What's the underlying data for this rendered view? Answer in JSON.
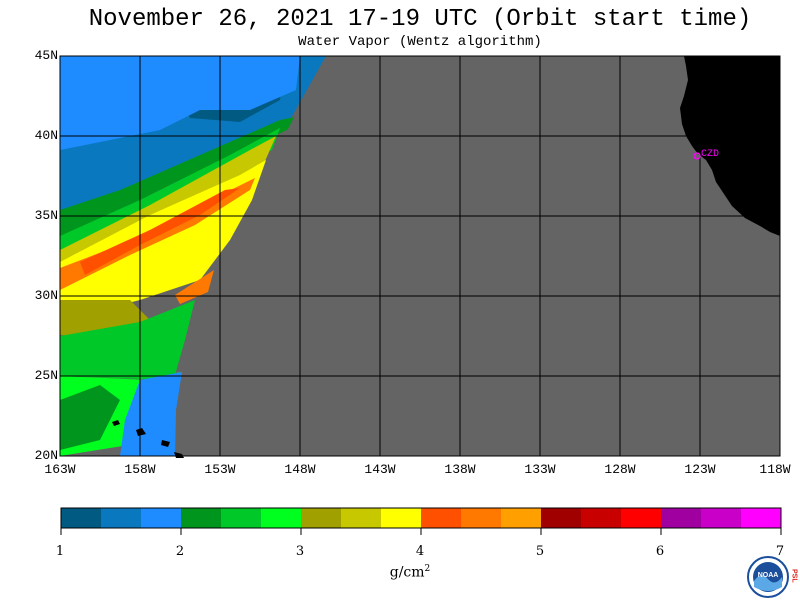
{
  "header": {
    "title": "November 26, 2021  17-19 UTC  (Orbit start time)",
    "subtitle": "Water Vapor (Wentz algorithm)"
  },
  "map": {
    "lat_labels": [
      "45N",
      "40N",
      "35N",
      "30N",
      "25N",
      "20N"
    ],
    "lon_labels": [
      "163W",
      "158W",
      "153W",
      "148W",
      "143W",
      "138W",
      "133W",
      "128W",
      "123W",
      "118W"
    ],
    "station_label": "CZD",
    "colors": {
      "no_data": "#646464",
      "land": "#000000",
      "station": "#ff00ff",
      "grid": "#000000"
    }
  },
  "colorbar": {
    "tick_labels": [
      "1",
      "2",
      "3",
      "4",
      "5",
      "6",
      "7"
    ],
    "units": "g/cm",
    "units_exp": "2",
    "colors": [
      "#005a82",
      "#0a78be",
      "#1e8cff",
      "#00961e",
      "#00c828",
      "#00ff1e",
      "#a0a000",
      "#c8c800",
      "#ffff00",
      "#ff5000",
      "#ff7800",
      "#ffa000",
      "#a00000",
      "#c80000",
      "#ff0000",
      "#a000a0",
      "#c800c8",
      "#ff00ff"
    ]
  },
  "logo": {
    "name": "NOAA",
    "side_text": "PSL"
  }
}
